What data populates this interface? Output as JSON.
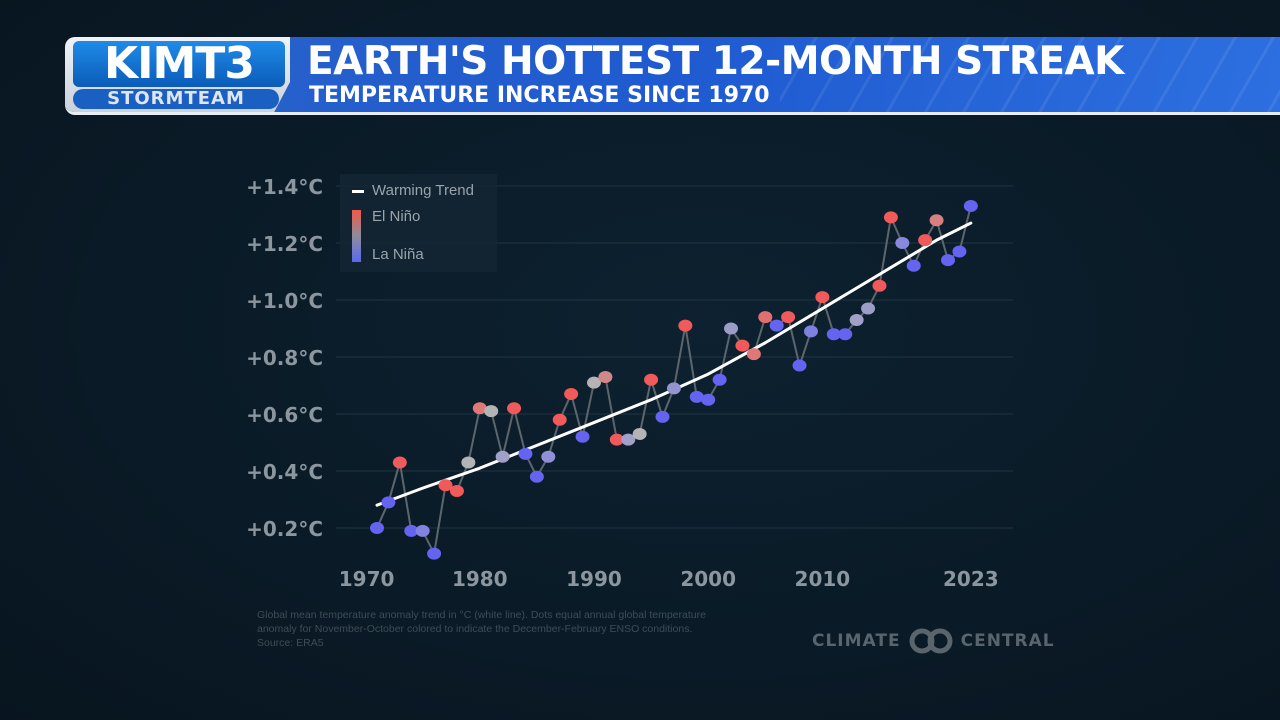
{
  "header": {
    "logo_top": "KIMT3",
    "logo_bottom": "STORMTEAM",
    "title": "EARTH'S HOTTEST 12-MONTH STREAK",
    "subtitle": "TEMPERATURE INCREASE SINCE 1970"
  },
  "legend": {
    "trend_label": "Warming Trend",
    "el_nino_label": "El Niño",
    "la_nina_label": "La Niña",
    "el_nino_color": "#f05a4a",
    "la_nina_color": "#5a6af0"
  },
  "footnote": {
    "line1": "Global mean temperature anomaly trend in °C (white line). Dots equal annual global temperature",
    "line2": "anomaly for November-October colored to indicate the December-February ENSO conditions.",
    "line3": "Source: ERA5"
  },
  "credit": {
    "left": "CLIMATE",
    "right": "CENTRAL"
  },
  "chart_data": {
    "type": "line",
    "title": "EARTH'S HOTTEST 12-MONTH STREAK",
    "subtitle": "TEMPERATURE INCREASE SINCE 1970",
    "xlabel": "",
    "ylabel": "",
    "xlim": [
      1970,
      2023
    ],
    "ylim": [
      0.1,
      1.4
    ],
    "x_ticks": [
      "1970",
      "1980",
      "1990",
      "2000",
      "2010",
      "2023"
    ],
    "x_tick_values": [
      1970,
      1980,
      1990,
      2000,
      2010,
      2023
    ],
    "y_ticks": [
      "+0.2°C",
      "+0.4°C",
      "+0.6°C",
      "+0.8°C",
      "+1.0°C",
      "+1.2°C",
      "+1.4°C"
    ],
    "y_tick_values": [
      0.2,
      0.4,
      0.6,
      0.8,
      1.0,
      1.2,
      1.4
    ],
    "grid": true,
    "legend_position": "top-left",
    "series": [
      {
        "name": "Annual anomaly (ENSO colored)",
        "x": [
          1971,
          1972,
          1973,
          1974,
          1975,
          1976,
          1977,
          1978,
          1979,
          1980,
          1981,
          1982,
          1983,
          1984,
          1985,
          1986,
          1987,
          1988,
          1989,
          1990,
          1991,
          1992,
          1993,
          1994,
          1995,
          1996,
          1997,
          1998,
          1999,
          2000,
          2001,
          2002,
          2003,
          2004,
          2005,
          2006,
          2007,
          2008,
          2009,
          2010,
          2011,
          2012,
          2013,
          2014,
          2015,
          2016,
          2017,
          2018,
          2019,
          2020,
          2021,
          2022,
          2023
        ],
        "y": [
          0.2,
          0.29,
          0.43,
          0.19,
          0.19,
          0.11,
          0.35,
          0.33,
          0.43,
          0.62,
          0.61,
          0.45,
          0.62,
          0.46,
          0.38,
          0.45,
          0.58,
          0.67,
          0.52,
          0.71,
          0.73,
          0.51,
          0.51,
          0.53,
          0.72,
          0.59,
          0.69,
          0.91,
          0.66,
          0.65,
          0.72,
          0.9,
          0.84,
          0.81,
          0.94,
          0.91,
          0.94,
          0.77,
          0.89,
          1.01,
          0.88,
          0.88,
          0.93,
          0.97,
          1.05,
          1.29,
          1.2,
          1.12,
          1.21,
          1.28,
          1.14,
          1.17,
          1.33
        ],
        "colors": [
          "#6464f0",
          "#6464f0",
          "#f05a5a",
          "#6464f0",
          "#8282e0",
          "#6464f0",
          "#f05a5a",
          "#f05a5a",
          "#b4b4b4",
          "#e07878",
          "#b4b4b4",
          "#a0a0c8",
          "#f05a5a",
          "#6464f0",
          "#6464f0",
          "#9090d8",
          "#f05a5a",
          "#f05a5a",
          "#6464f0",
          "#b4b4b4",
          "#d08888",
          "#f05a5a",
          "#a0a0c8",
          "#b4b4b4",
          "#f05a5a",
          "#6464f0",
          "#9494d0",
          "#f05a5a",
          "#6464f0",
          "#6464f0",
          "#6464f0",
          "#9c9cc8",
          "#f05a5a",
          "#e07878",
          "#e07070",
          "#6464f0",
          "#f05a5a",
          "#6464f0",
          "#8080e0",
          "#f05a5a",
          "#6464f0",
          "#6464f0",
          "#a0a0c8",
          "#9c9cc8",
          "#f05a5a",
          "#f05a5a",
          "#8888dc",
          "#6464f0",
          "#f05a5a",
          "#d88080",
          "#6464f0",
          "#6464f0",
          "#6464f0"
        ]
      },
      {
        "name": "Warming Trend",
        "x": [
          1971,
          1975,
          1980,
          1985,
          1990,
          1995,
          2000,
          2005,
          2010,
          2015,
          2020,
          2023
        ],
        "y": [
          0.28,
          0.34,
          0.41,
          0.49,
          0.57,
          0.65,
          0.74,
          0.85,
          0.97,
          1.09,
          1.21,
          1.27
        ]
      }
    ]
  }
}
